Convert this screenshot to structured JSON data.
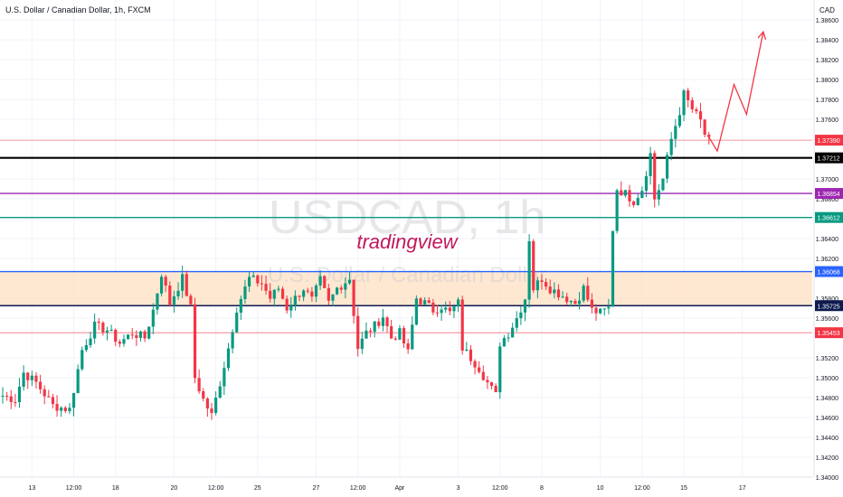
{
  "header": {
    "title": "U.S. Dollar / Canadian Dollar, 1h, FXCM",
    "currency": "CAD"
  },
  "watermark": {
    "symbol": "USDCAD, 1h",
    "name": "U.S. Dollar / Canadian Dollar",
    "brand": "tradingview"
  },
  "colors": {
    "up": "#089981",
    "down": "#f23645",
    "black_level": "#000000",
    "purple_level": "#9c27b0",
    "green_level": "#089981",
    "blue_level": "#2962ff",
    "navy_level": "#0d1a4f",
    "red_level": "#f23645",
    "zone": "#ffe0c2",
    "arrow": "#f23645"
  },
  "chart_data": {
    "type": "candlestick",
    "y_axis_side": "right",
    "ylim": [
      1.34,
      1.388
    ],
    "y_ticks": [
      "1.38600",
      "1.38400",
      "1.38200",
      "1.38000",
      "1.37800",
      "1.37600",
      "1.37000",
      "1.36800",
      "1.36400",
      "1.36200",
      "1.35800",
      "1.35600",
      "1.35200",
      "1.35000",
      "1.34800",
      "1.34600",
      "1.34400",
      "1.34200",
      "1.34000"
    ],
    "x_ticks": [
      {
        "label": "13",
        "idx": 7
      },
      {
        "label": "12:00",
        "idx": 17
      },
      {
        "label": "18",
        "idx": 27
      },
      {
        "label": "20",
        "idx": 41
      },
      {
        "label": "12:00",
        "idx": 51
      },
      {
        "label": "25",
        "idx": 61
      },
      {
        "label": "27",
        "idx": 75
      },
      {
        "label": "12:00",
        "idx": 85
      },
      {
        "label": "Apr",
        "idx": 95
      },
      {
        "label": "3",
        "idx": 109
      },
      {
        "label": "12:00",
        "idx": 119
      },
      {
        "label": "8",
        "idx": 129
      },
      {
        "label": "10",
        "idx": 143
      },
      {
        "label": "12:00",
        "idx": 153
      },
      {
        "label": "15",
        "idx": 163
      },
      {
        "label": "17",
        "idx": 177
      }
    ],
    "levels": [
      {
        "label": "1.37390",
        "value": 1.3739,
        "color_key": "red_level",
        "style": "thin"
      },
      {
        "label": "1.37212",
        "value": 1.37212,
        "color_key": "black_level",
        "style": "thick"
      },
      {
        "label": "1.36854",
        "value": 1.36854,
        "color_key": "purple_level",
        "style": "mid"
      },
      {
        "label": "1.36612",
        "value": 1.36612,
        "color_key": "green_level",
        "style": "mid"
      },
      {
        "label": "1.36068",
        "value": 1.36068,
        "color_key": "blue_level",
        "style": "mid"
      },
      {
        "label": "1.35725",
        "value": 1.35725,
        "color_key": "navy_level",
        "style": "mid"
      },
      {
        "label": "1.35453",
        "value": 1.35453,
        "color_key": "red_level",
        "style": "thin"
      }
    ],
    "zone": {
      "from": 1.35725,
      "to": 1.36068
    },
    "anchors": [
      [
        0,
        1.3482
      ],
      [
        3,
        1.3478
      ],
      [
        5,
        1.3505
      ],
      [
        8,
        1.3495
      ],
      [
        12,
        1.3472
      ],
      [
        16,
        1.3468
      ],
      [
        19,
        1.3528
      ],
      [
        22,
        1.3552
      ],
      [
        25,
        1.3548
      ],
      [
        28,
        1.3535
      ],
      [
        31,
        1.3545
      ],
      [
        34,
        1.354
      ],
      [
        36,
        1.3568
      ],
      [
        38,
        1.3605
      ],
      [
        40,
        1.3575
      ],
      [
        43,
        1.36
      ],
      [
        45,
        1.357
      ],
      [
        46,
        1.35
      ],
      [
        48,
        1.3478
      ],
      [
        50,
        1.3462
      ],
      [
        52,
        1.3495
      ],
      [
        54,
        1.353
      ],
      [
        56,
        1.357
      ],
      [
        59,
        1.36
      ],
      [
        62,
        1.3595
      ],
      [
        64,
        1.358
      ],
      [
        66,
        1.359
      ],
      [
        68,
        1.357
      ],
      [
        70,
        1.358
      ],
      [
        72,
        1.359
      ],
      [
        74,
        1.3578
      ],
      [
        76,
        1.3598
      ],
      [
        78,
        1.3575
      ],
      [
        80,
        1.359
      ],
      [
        83,
        1.36
      ],
      [
        85,
        1.353
      ],
      [
        87,
        1.3545
      ],
      [
        89,
        1.3552
      ],
      [
        91,
        1.3562
      ],
      [
        93,
        1.354
      ],
      [
        95,
        1.3545
      ],
      [
        97,
        1.3525
      ],
      [
        99,
        1.358
      ],
      [
        101,
        1.3575
      ],
      [
        103,
        1.3568
      ],
      [
        105,
        1.3572
      ],
      [
        107,
        1.3565
      ],
      [
        109,
        1.3575
      ],
      [
        110,
        1.353
      ],
      [
        112,
        1.352
      ],
      [
        114,
        1.351
      ],
      [
        116,
        1.3495
      ],
      [
        118,
        1.3482
      ],
      [
        119,
        1.3535
      ],
      [
        121,
        1.3545
      ],
      [
        123,
        1.356
      ],
      [
        125,
        1.358
      ],
      [
        126,
        1.364
      ],
      [
        127,
        1.359
      ],
      [
        129,
        1.36
      ],
      [
        131,
        1.359
      ],
      [
        133,
        1.3585
      ],
      [
        135,
        1.358
      ],
      [
        137,
        1.3575
      ],
      [
        139,
        1.359
      ],
      [
        141,
        1.3568
      ],
      [
        143,
        1.3565
      ],
      [
        145,
        1.357
      ],
      [
        146,
        1.365
      ],
      [
        147,
        1.369
      ],
      [
        149,
        1.3685
      ],
      [
        151,
        1.3678
      ],
      [
        153,
        1.369
      ],
      [
        155,
        1.3725
      ],
      [
        156,
        1.368
      ],
      [
        158,
        1.37
      ],
      [
        160,
        1.374
      ],
      [
        162,
        1.3768
      ],
      [
        163,
        1.3785
      ],
      [
        165,
        1.377
      ],
      [
        167,
        1.3758
      ],
      [
        168,
        1.3745
      ],
      [
        169,
        1.3742
      ]
    ],
    "projection": [
      [
        169,
        1.3742
      ],
      [
        171,
        1.3728
      ],
      [
        175,
        1.3795
      ],
      [
        178,
        1.3765
      ],
      [
        182,
        1.3848
      ]
    ]
  }
}
